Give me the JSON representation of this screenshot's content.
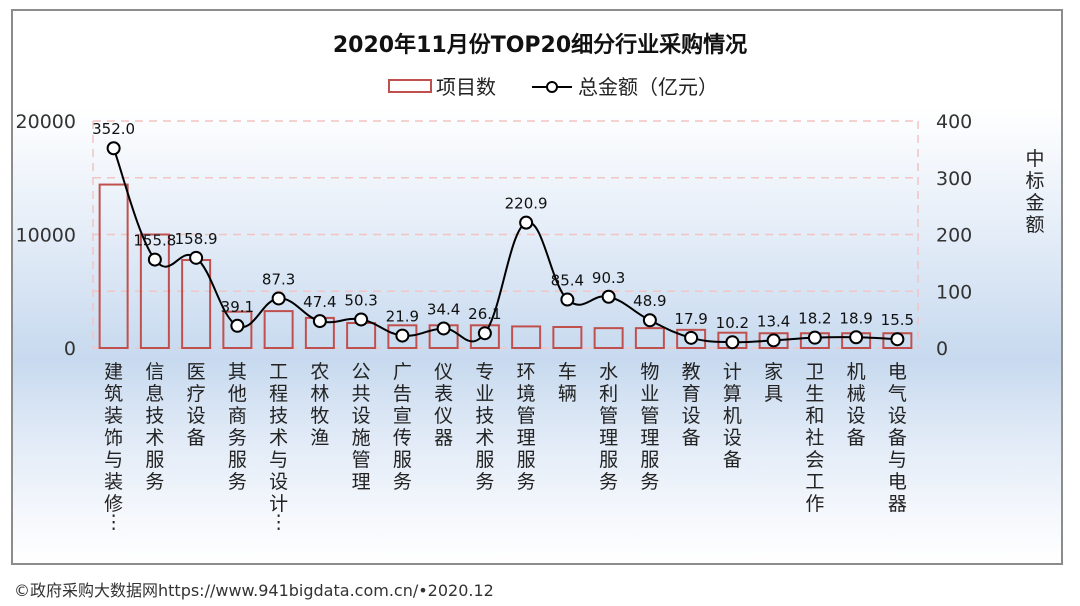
{
  "footer": {
    "text": "©政府采购大数据网https://www.941bigdata.com.cn/•2020.12"
  },
  "colors": {
    "bar_stroke": "#c0504d",
    "line": "#000000",
    "grid": "#f2c4c4",
    "axis_text": "#333333"
  },
  "chart_data": {
    "type": "bar",
    "title": "2020年11月份TOP20细分行业采购情况",
    "legend": {
      "placement": "top-center",
      "entries": [
        "项目数",
        "总金额（亿元）"
      ]
    },
    "categories": [
      "建筑装饰与装修…",
      "信息技术服务",
      "医疗设备",
      "其他商务服务",
      "工程技术与设计…",
      "农林牧渔",
      "公共设施管理",
      "广告宣传服务",
      "仪表仪器",
      "专业技术服务",
      "环境管理服务",
      "车辆",
      "水利管理服务",
      "物业管理服务",
      "教育设备",
      "计算机设备",
      "家具",
      "卫生和社会工作",
      "机械设备",
      "电气设备与电器"
    ],
    "series": [
      {
        "name": "项目数",
        "type": "bar",
        "axis": "left",
        "values": [
          14400,
          10000,
          7750,
          3200,
          3250,
          2650,
          2200,
          2000,
          2000,
          2000,
          1900,
          1850,
          1750,
          1750,
          1600,
          1350,
          1300,
          1300,
          1300,
          1300
        ]
      },
      {
        "name": "总金额（亿元）",
        "type": "line",
        "axis": "right",
        "values": [
          352.0,
          155.8,
          158.9,
          39.1,
          87.3,
          47.4,
          50.3,
          21.9,
          34.4,
          26.1,
          220.9,
          85.4,
          90.3,
          48.9,
          17.9,
          10.2,
          13.4,
          18.2,
          18.9,
          15.5
        ],
        "labels": [
          "352.0",
          "155.8",
          "158.9",
          "39.1",
          "87.3",
          "47.4",
          "50.3",
          "21.9",
          "34.4",
          "26.1",
          "220.9",
          "85.4",
          "90.3",
          "48.9",
          "17.9",
          "10.2",
          "13.4",
          "18.2",
          "18.9",
          "15.5"
        ]
      }
    ],
    "y_left": {
      "range": [
        0,
        20000
      ],
      "ticks": [
        "0",
        "10000",
        "20000"
      ],
      "tick_values": [
        0,
        10000,
        20000
      ],
      "label": ""
    },
    "y_right": {
      "range": [
        0,
        400
      ],
      "ticks": [
        "0",
        "100",
        "200",
        "300",
        "400"
      ],
      "tick_values": [
        0,
        100,
        200,
        300,
        400
      ],
      "label": "中标金额"
    },
    "xlabel": "",
    "grid": true
  }
}
